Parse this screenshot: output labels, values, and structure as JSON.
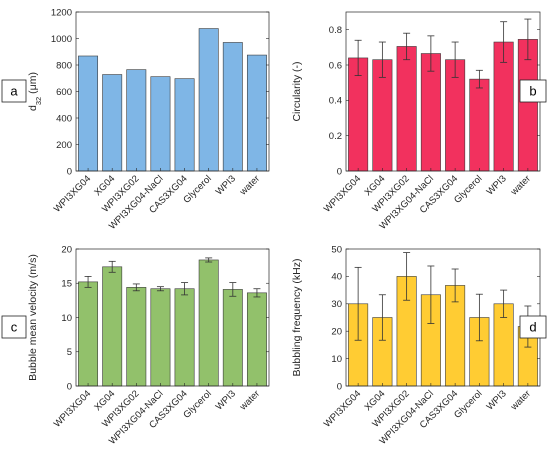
{
  "chart_data": [
    {
      "id": "a",
      "type": "bar",
      "panel_label": "a",
      "ylabel": "d",
      "ylabel_sub": "32",
      "ylabel_suffix": " (μm)",
      "ylim": [
        0,
        1200
      ],
      "yticks": [
        0,
        200,
        400,
        600,
        800,
        1000,
        1200
      ],
      "categories": [
        "WPI3XG04",
        "XG04",
        "WPI3XG02",
        "WPI3XG04-NaCl",
        "CAS3XG04",
        "Glycerol",
        "WPI3",
        "water"
      ],
      "values": [
        868,
        728,
        765,
        712,
        697,
        1075,
        970,
        875
      ],
      "errors": null,
      "color": "#7fb6e6",
      "grid": false,
      "legend": "none"
    },
    {
      "id": "b",
      "type": "bar",
      "panel_label": "b",
      "ylabel": "Circularity (-)",
      "ylim": [
        0,
        0.9
      ],
      "yticks": [
        0,
        0.2,
        0.4,
        0.6,
        0.8
      ],
      "ytick_labels": [
        "0",
        "0.2",
        "0.4",
        "0.6",
        "0.8"
      ],
      "categories": [
        "WPI3XG04",
        "XG04",
        "WPI3XG02",
        "WPI3XG04-NaCl",
        "CAS3XG04",
        "Glycerol",
        "WPI3",
        "water"
      ],
      "values": [
        0.64,
        0.63,
        0.705,
        0.665,
        0.63,
        0.52,
        0.73,
        0.745
      ],
      "errors": [
        0.1,
        0.1,
        0.075,
        0.1,
        0.1,
        0.05,
        0.115,
        0.115
      ],
      "color": "#f2315e",
      "grid": false,
      "legend": "none"
    },
    {
      "id": "c",
      "type": "bar",
      "panel_label": "c",
      "ylabel": "Bubble mean velocity (m/s)",
      "ylim": [
        0,
        20
      ],
      "yticks": [
        0,
        5,
        10,
        15,
        20
      ],
      "categories": [
        "WPI3XG04",
        "XG04",
        "WPI3XG02",
        "WPI3XG04-NaCl",
        "CAS3XG04",
        "Glycerol",
        "WPI3",
        "water"
      ],
      "values": [
        15.2,
        17.4,
        14.4,
        14.2,
        14.2,
        18.4,
        14.1,
        13.6
      ],
      "errors": [
        0.8,
        0.8,
        0.5,
        0.3,
        0.9,
        0.3,
        1.0,
        0.6
      ],
      "color": "#92c16b",
      "grid": false,
      "legend": "none"
    },
    {
      "id": "d",
      "type": "bar",
      "panel_label": "d",
      "ylabel": "Bubbling frequency (kHz)",
      "ylim": [
        0,
        50
      ],
      "yticks": [
        0,
        10,
        20,
        30,
        40,
        50
      ],
      "categories": [
        "WPI3XG04",
        "XG04",
        "WPI3XG02",
        "WPI3XG04-NaCl",
        "CAS3XG04",
        "Glycerol",
        "WPI3",
        "water"
      ],
      "values": [
        30,
        25,
        40,
        33.3,
        36.7,
        25,
        30,
        21.7
      ],
      "errors": [
        13.3,
        8.3,
        8.7,
        10.5,
        6.0,
        8.5,
        5.0,
        7.5
      ],
      "color": "#ffcc33",
      "grid": false,
      "legend": "none"
    }
  ]
}
